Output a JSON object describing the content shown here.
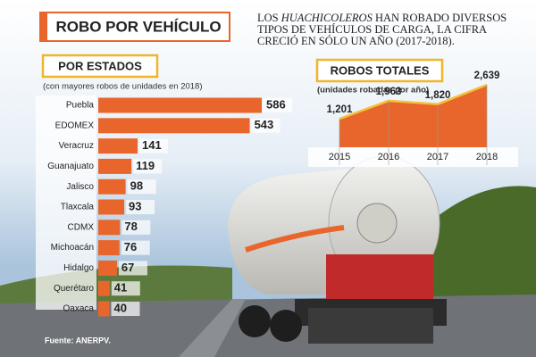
{
  "header": {
    "title": "ROBO POR VEHÍCULO",
    "intro": [
      "LOS",
      "HUACHICOLEROS",
      "HAN ROBADO DIVERSOS TIPOS DE VEHÍCULOS DE CARGA, LA CIFRA CRECIÓ EN SÓLO UN AÑO (2017-2018)."
    ]
  },
  "chart_data": [
    {
      "type": "hbar",
      "title": "POR ESTADOS",
      "subtitle": "(con mayores robos de unidades en 2018)",
      "categories": [
        "Puebla",
        "EDOMEX",
        "Veracruz",
        "Guanajuato",
        "Jalisco",
        "Tlaxcala",
        "CDMX",
        "Michoacán",
        "Hidalgo",
        "Querétaro",
        "Oaxaca"
      ],
      "values": [
        586,
        543,
        141,
        119,
        98,
        93,
        78,
        76,
        67,
        41,
        40
      ],
      "color": "#e8662c"
    },
    {
      "type": "area",
      "title": "ROBOS TOTALES",
      "subtitle": "(unidades robadas por año)",
      "categories": [
        "2015",
        "2016",
        "2017",
        "2018"
      ],
      "values": [
        1201,
        1963,
        1820,
        2639
      ],
      "value_labels": [
        "1,201",
        "1,963",
        "1,820",
        "2,639"
      ],
      "color": "#e8662c"
    }
  ],
  "source": "Fuente: ANERPV."
}
